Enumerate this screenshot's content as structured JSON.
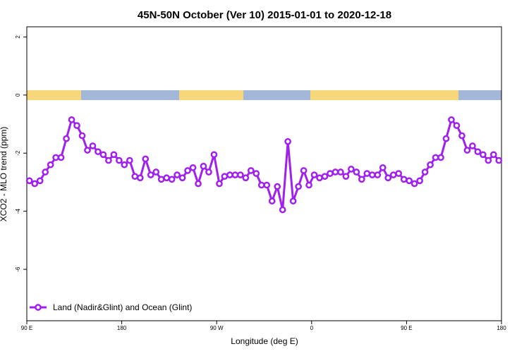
{
  "chart_data": {
    "type": "line",
    "title": "45N-50N October (Ver 10)   2015-01-01 to 2020-12-18",
    "x_label": "Longitude (deg E)",
    "y_label": "XCO2 - MLO trend (ppm)",
    "x": [
      92.5,
      97.5,
      102.5,
      107.5,
      112.5,
      117.5,
      122.5,
      127.5,
      132.5,
      137.5,
      142.5,
      147.5,
      152.5,
      157.5,
      162.5,
      167.5,
      172.5,
      177.5,
      182.5,
      187.5,
      192.5,
      197.5,
      202.5,
      207.5,
      212.5,
      217.5,
      222.5,
      227.5,
      232.5,
      237.5,
      242.5,
      247.5,
      252.5,
      257.5,
      262.5,
      267.5,
      272.5,
      277.5,
      282.5,
      287.5,
      292.5,
      297.5,
      302.5,
      307.5,
      312.5,
      317.5,
      322.5,
      327.5,
      332.5,
      337.5,
      342.5,
      347.5,
      352.5,
      357.5,
      362.5,
      367.5,
      372.5,
      377.5,
      382.5,
      387.5,
      392.5,
      397.5,
      402.5,
      407.5,
      412.5,
      417.5,
      422.5,
      427.5,
      432.5,
      437.5,
      442.5,
      447.5,
      452.5,
      457.5,
      462.5,
      467.5,
      472.5,
      477.5,
      482.5,
      487.5,
      492.5,
      497.5,
      502.5,
      507.5,
      512.5,
      517.5,
      522.5,
      527.5,
      532.5,
      537.5
    ],
    "series": [
      {
        "name": "Land (Nadir&Glint) and Ocean (Glint)",
        "color": "#a020f0",
        "values": [
          -2.95,
          -3.05,
          -2.95,
          -2.65,
          -2.4,
          -2.15,
          -2.15,
          -1.5,
          -0.85,
          -1.05,
          -1.4,
          -1.9,
          -1.75,
          -1.95,
          -2.05,
          -2.25,
          -2.05,
          -2.25,
          -2.4,
          -2.25,
          -2.8,
          -2.85,
          -2.2,
          -2.75,
          -2.65,
          -2.9,
          -2.85,
          -2.9,
          -2.75,
          -2.85,
          -2.6,
          -2.5,
          -3.05,
          -2.45,
          -2.65,
          -2.05,
          -3.05,
          -2.8,
          -2.75,
          -2.75,
          -2.75,
          -2.85,
          -2.6,
          -2.7,
          -3.1,
          -3.1,
          -3.65,
          -3.15,
          -3.95,
          -1.6,
          -3.65,
          -3.15,
          -2.6,
          -3.1,
          -2.75,
          -2.85,
          -2.8,
          -2.7,
          -2.65,
          -2.65,
          -2.8,
          -2.55,
          -2.65,
          -2.9,
          -2.7,
          -2.75,
          -2.75,
          -2.5,
          -2.85,
          -2.75,
          -2.7,
          -2.9,
          -2.95,
          -3.05,
          -2.95,
          -2.65,
          -2.4,
          -2.15,
          -2.15,
          -1.5,
          -0.85,
          -1.05,
          -1.4,
          -1.9,
          -1.75,
          -1.95,
          -2.05,
          -2.25,
          -2.05,
          -2.25
        ]
      }
    ],
    "xlim": [
      90,
      540
    ],
    "xticks": [
      {
        "value": 90,
        "label": "90 E"
      },
      180,
      {
        "value": 270,
        "label": "90 W"
      },
      {
        "value": 360,
        "label": "0"
      },
      {
        "value": 450,
        "label": "90 E"
      },
      {
        "value": 540,
        "label": "180"
      }
    ],
    "ylim": [
      -7.77,
      2.35
    ],
    "yticks": [
      -6,
      -4,
      -2,
      0,
      2
    ],
    "legend": "bottom-left"
  }
}
